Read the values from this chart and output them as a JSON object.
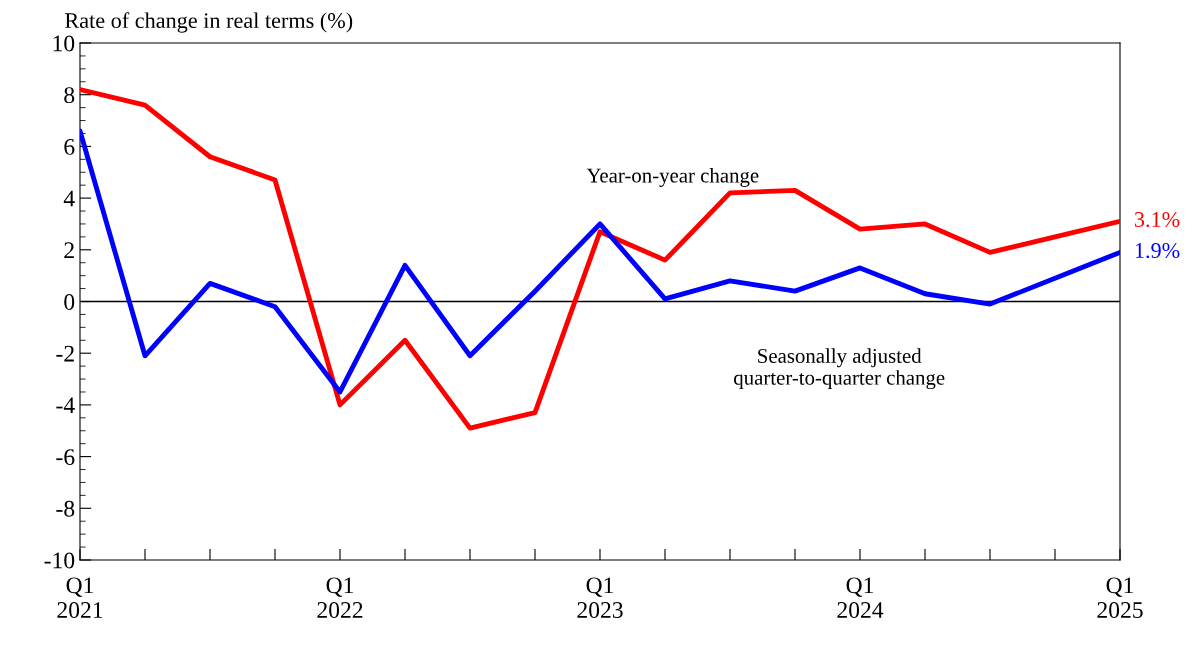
{
  "chart_data": {
    "type": "line",
    "ylabel": "Rate of change in real terms (%)",
    "categories": [
      "Q1\n2021",
      null,
      null,
      null,
      "Q1\n2022",
      null,
      null,
      null,
      "Q1\n2023",
      null,
      null,
      null,
      "Q1\n2024",
      null,
      null,
      null,
      "Q1\n2025"
    ],
    "series": [
      {
        "name": "Year-on-year change",
        "color": "#ff0000",
        "values": [
          8.2,
          7.6,
          5.6,
          4.7,
          -4.0,
          -1.5,
          -4.9,
          -4.3,
          2.7,
          1.6,
          4.2,
          4.3,
          2.8,
          3.0,
          1.9,
          2.5,
          3.1
        ],
        "value_labels": [
          null,
          null,
          null,
          null,
          null,
          null,
          null,
          null,
          null,
          null,
          null,
          null,
          null,
          null,
          null,
          null,
          "3.1%"
        ]
      },
      {
        "name": "Seasonally adjusted\nquarter-to-quarter change",
        "color": "#0000ff",
        "values": [
          6.6,
          -2.1,
          0.7,
          -0.2,
          -3.5,
          1.4,
          -2.1,
          0.4,
          3.0,
          0.1,
          0.8,
          0.4,
          1.3,
          0.3,
          -0.1,
          0.9,
          1.9
        ],
        "value_labels": [
          null,
          null,
          null,
          null,
          null,
          null,
          null,
          null,
          null,
          null,
          null,
          null,
          null,
          null,
          null,
          null,
          "1.9%"
        ]
      }
    ],
    "ylim": [
      -10,
      10
    ],
    "yticks": [
      -10,
      -8,
      -6,
      -4,
      -2,
      0,
      2,
      4,
      6,
      8,
      10
    ],
    "ref_lines": [
      {
        "axis": "y",
        "value": 0,
        "color": "#000000",
        "line_style": "solid"
      }
    ],
    "grid": false,
    "legend": false,
    "marker": "none",
    "line_style": "solid"
  }
}
